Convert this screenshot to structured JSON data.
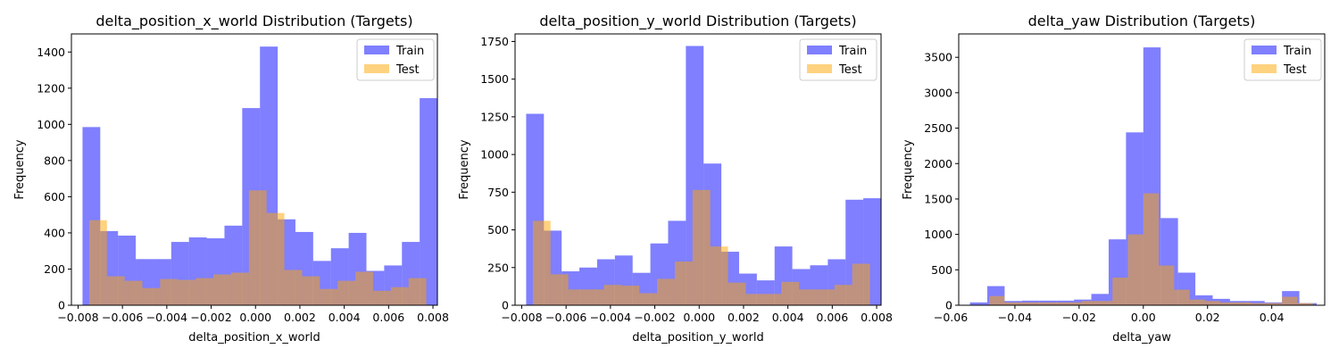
{
  "colors": {
    "train": "#0000ff",
    "test": "#ffa500",
    "bar_alpha": 0.5,
    "test_alpha": 0.5
  },
  "chart_data": [
    {
      "type": "bar",
      "title": "delta_position_x_world Distribution (Targets)",
      "xlabel": "delta_position_x_world",
      "ylabel": "Frequency",
      "xlim": [
        -0.0083,
        0.0082
      ],
      "ylim": [
        0,
        1500
      ],
      "xticks": [
        -0.008,
        -0.006,
        -0.004,
        -0.002,
        0.0,
        0.002,
        0.004,
        0.006,
        0.008
      ],
      "xtick_labels": [
        "−0.008",
        "−0.006",
        "−0.004",
        "−0.002",
        "0.000",
        "0.002",
        "0.004",
        "0.006",
        "0.008"
      ],
      "yticks": [
        0,
        200,
        400,
        600,
        800,
        1000,
        1200,
        1400
      ],
      "ytick_labels": [
        "0",
        "200",
        "400",
        "600",
        "800",
        "1000",
        "1200",
        "1400"
      ],
      "grid": false,
      "legend": {
        "position": "top-right",
        "entries": [
          "Train",
          "Test"
        ]
      },
      "series": [
        {
          "name": "Train",
          "bin_edges": [
            -0.0078,
            -0.007,
            -0.0062,
            -0.0054,
            -0.0046,
            -0.0038,
            -0.003,
            -0.0022,
            -0.0014,
            -0.0006,
            0.0002,
            0.001,
            0.0018,
            0.0026,
            0.0034,
            0.0042,
            0.005,
            0.0058,
            0.0066,
            0.0074,
            0.0082
          ],
          "values": [
            985,
            410,
            385,
            255,
            255,
            350,
            375,
            370,
            440,
            1090,
            1430,
            475,
            405,
            245,
            315,
            400,
            190,
            220,
            350,
            1145
          ]
        },
        {
          "name": "Test",
          "bin_edges": [
            -0.0075,
            -0.0067,
            -0.0059,
            -0.0051,
            -0.0043,
            -0.0035,
            -0.0027,
            -0.0019,
            -0.0011,
            -0.0003,
            0.0005,
            0.0013,
            0.0021,
            0.0029,
            0.0037,
            0.0045,
            0.0053,
            0.0061,
            0.0069,
            0.0077
          ],
          "values": [
            470,
            160,
            135,
            95,
            145,
            140,
            150,
            170,
            180,
            635,
            510,
            195,
            160,
            90,
            135,
            185,
            80,
            100,
            150,
            465
          ]
        }
      ]
    },
    {
      "type": "bar",
      "title": "delta_position_y_world Distribution (Targets)",
      "xlabel": "delta_position_y_world",
      "ylabel": "Frequency",
      "xlim": [
        -0.0083,
        0.0082
      ],
      "ylim": [
        0,
        1800
      ],
      "xticks": [
        -0.008,
        -0.006,
        -0.004,
        -0.002,
        0.0,
        0.002,
        0.004,
        0.006,
        0.008
      ],
      "xtick_labels": [
        "−0.008",
        "−0.006",
        "−0.004",
        "−0.002",
        "0.000",
        "0.002",
        "0.004",
        "0.006",
        "0.008"
      ],
      "yticks": [
        0,
        250,
        500,
        750,
        1000,
        1250,
        1500,
        1750
      ],
      "ytick_labels": [
        "0",
        "250",
        "500",
        "750",
        "1000",
        "1250",
        "1500",
        "1750"
      ],
      "grid": false,
      "legend": {
        "position": "top-right",
        "entries": [
          "Train",
          "Test"
        ]
      },
      "series": [
        {
          "name": "Train",
          "bin_edges": [
            -0.0078,
            -0.007,
            -0.0062,
            -0.0054,
            -0.0046,
            -0.0038,
            -0.003,
            -0.0022,
            -0.0014,
            -0.0006,
            0.0002,
            0.001,
            0.0018,
            0.0026,
            0.0034,
            0.0042,
            0.005,
            0.0058,
            0.0066,
            0.0074,
            0.0082
          ],
          "values": [
            1270,
            495,
            225,
            250,
            305,
            330,
            215,
            410,
            560,
            1720,
            940,
            355,
            210,
            165,
            390,
            240,
            265,
            305,
            700,
            710
          ]
        },
        {
          "name": "Test",
          "bin_edges": [
            -0.0075,
            -0.0067,
            -0.0059,
            -0.0051,
            -0.0043,
            -0.0035,
            -0.0027,
            -0.0019,
            -0.0011,
            -0.0003,
            0.0005,
            0.0013,
            0.0021,
            0.0029,
            0.0037,
            0.0045,
            0.0053,
            0.0061,
            0.0069,
            0.0077
          ],
          "values": [
            560,
            205,
            105,
            105,
            135,
            130,
            80,
            175,
            290,
            765,
            390,
            150,
            75,
            75,
            155,
            105,
            105,
            135,
            275,
            325
          ]
        }
      ]
    },
    {
      "type": "bar",
      "title": "delta_yaw Distribution (Targets)",
      "xlabel": "delta_yaw",
      "ylabel": "Frequency",
      "xlim": [
        -0.0575,
        0.0565
      ],
      "ylim": [
        0,
        3830
      ],
      "xticks": [
        -0.06,
        -0.04,
        -0.02,
        0.0,
        0.02,
        0.04
      ],
      "xtick_labels": [
        "−0.06",
        "−0.04",
        "−0.02",
        "0.00",
        "0.02",
        "0.04"
      ],
      "yticks": [
        0,
        500,
        1000,
        1500,
        2000,
        2500,
        3000,
        3500
      ],
      "ytick_labels": [
        "0",
        "500",
        "1000",
        "1500",
        "2000",
        "2500",
        "3000",
        "3500"
      ],
      "grid": false,
      "legend": {
        "position": "top-right",
        "entries": [
          "Train",
          "Test"
        ]
      },
      "series": [
        {
          "name": "Train",
          "bin_edges": [
            -0.054,
            -0.0486,
            -0.0432,
            -0.0378,
            -0.0324,
            -0.027,
            -0.0216,
            -0.0162,
            -0.0108,
            -0.0054,
            0.0,
            0.0054,
            0.0108,
            0.0162,
            0.0216,
            0.027,
            0.0324,
            0.0378,
            0.0432,
            0.0486,
            0.054
          ],
          "values": [
            40,
            270,
            60,
            65,
            65,
            65,
            80,
            160,
            930,
            2440,
            3640,
            1230,
            460,
            140,
            90,
            60,
            60,
            40,
            200,
            30
          ]
        },
        {
          "name": "Test",
          "bin_edges": [
            -0.048,
            -0.0432,
            -0.0384,
            -0.0336,
            -0.0288,
            -0.024,
            -0.0192,
            -0.0144,
            -0.0096,
            -0.0048,
            0.0,
            0.0048,
            0.0096,
            0.0144,
            0.0192,
            0.024,
            0.0288,
            0.0336,
            0.0384,
            0.0432,
            0.048,
            0.0528
          ],
          "values": [
            130,
            40,
            40,
            40,
            40,
            40,
            60,
            60,
            390,
            1000,
            1580,
            560,
            220,
            80,
            60,
            40,
            40,
            30,
            30,
            120,
            30
          ]
        }
      ]
    }
  ]
}
